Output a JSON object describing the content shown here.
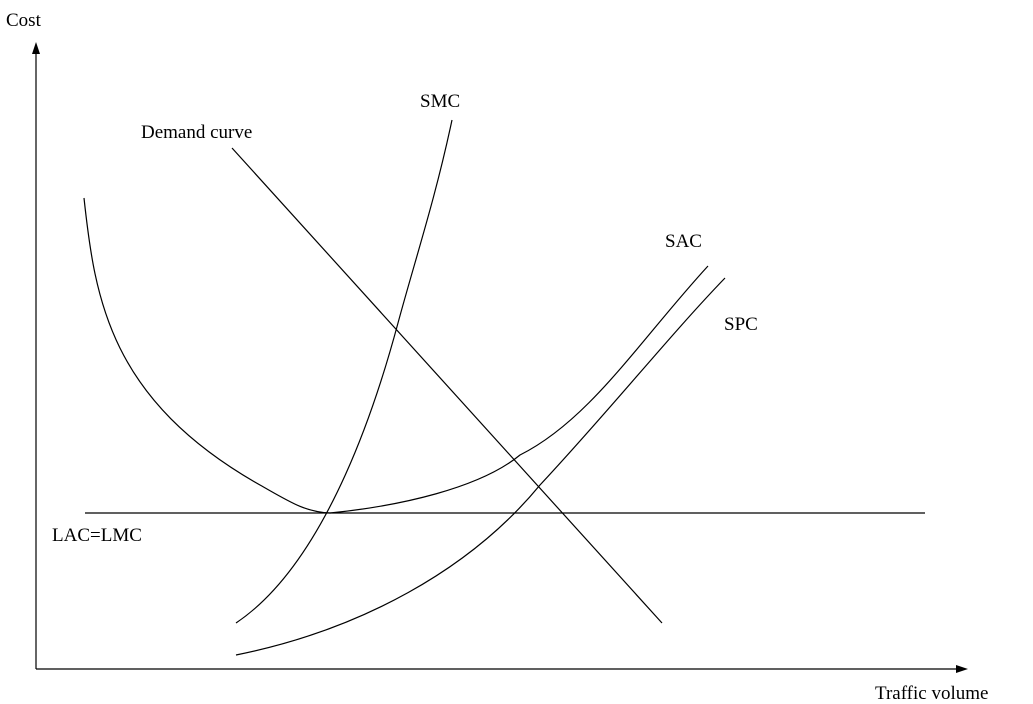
{
  "diagram": {
    "y_axis_label": "Cost",
    "x_axis_label": "Traffic volume",
    "curves": {
      "smc": "SMC",
      "demand": "Demand curve",
      "sac": "SAC",
      "spc": "SPC",
      "lac_lmc": "LAC=LMC"
    }
  },
  "colors": {
    "stroke": "#000000",
    "background": "#ffffff"
  }
}
